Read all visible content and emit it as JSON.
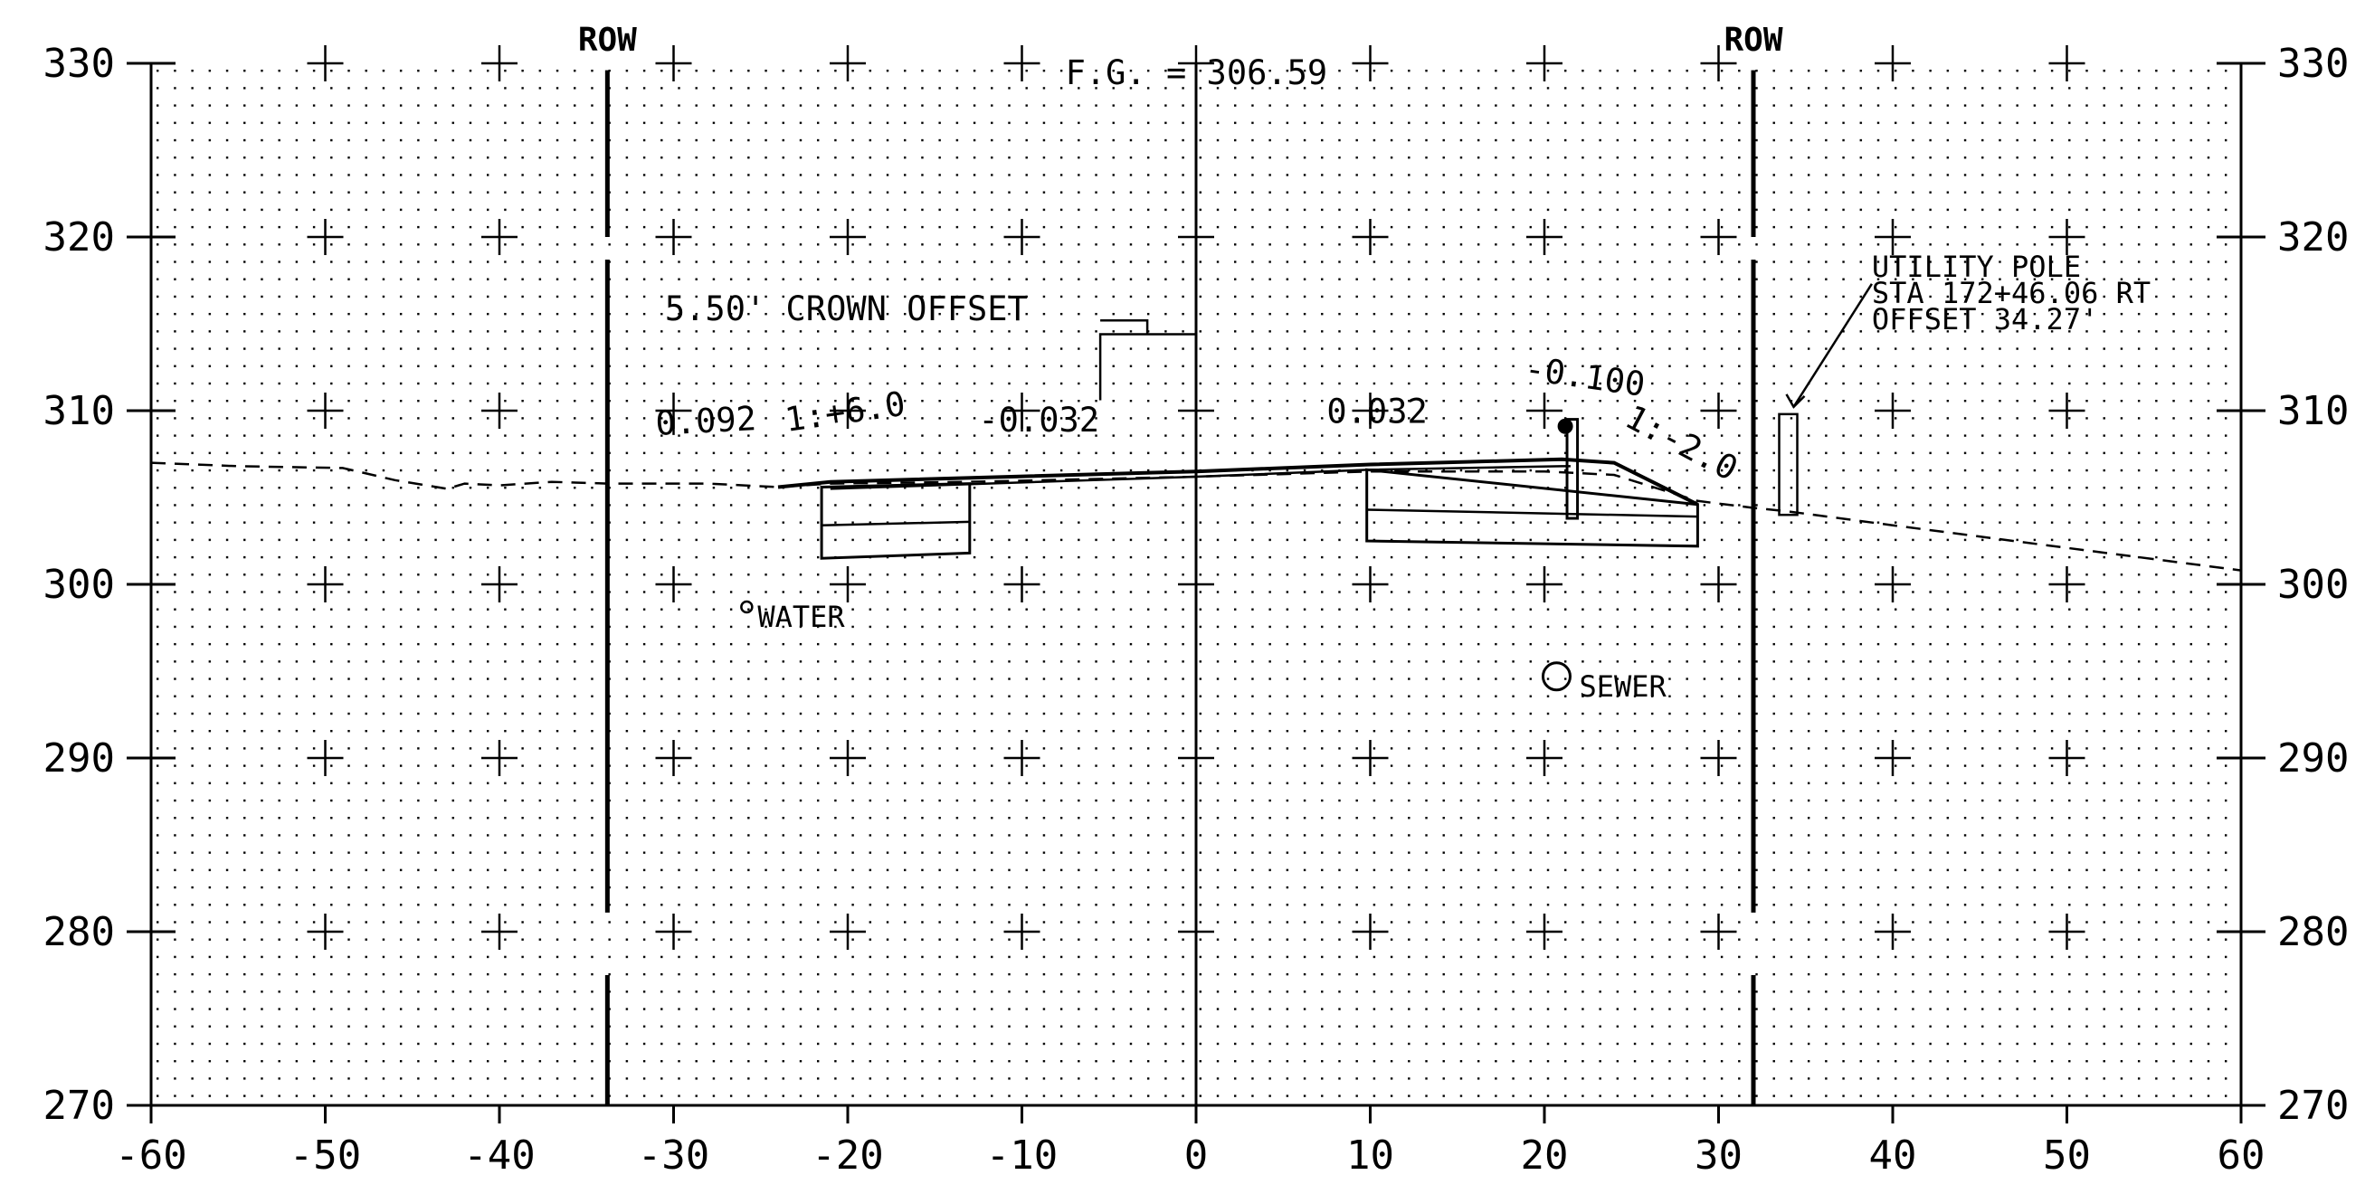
{
  "x_axis": {
    "min": -60,
    "max": 60,
    "step": 10,
    "tick_labels": [
      "-60",
      "-50",
      "-40",
      "-30",
      "-20",
      "-10",
      "0",
      "10",
      "20",
      "30",
      "40",
      "50",
      "60"
    ]
  },
  "y_axis": {
    "min": 270,
    "max": 330,
    "step": 10,
    "tick_labels": [
      "270",
      "280",
      "290",
      "300",
      "310",
      "320",
      "330"
    ]
  },
  "row_lines": [
    {
      "label": "ROW",
      "offset": -33.8
    },
    {
      "label": "ROW",
      "offset": 32.0
    }
  ],
  "centerline_offset": 0,
  "annotations": {
    "fg_elevation": "F.G. = 306.59",
    "crown_offset": "5.50' CROWN OFFSET",
    "left_slope": "0.092",
    "left_ratio": "1:+6.0",
    "left_cross_slope": "-0.032",
    "right_cross_slope": "0.032",
    "right_slope": "-0.100",
    "right_ratio": "1:-2.0",
    "utility_pole": [
      "UTILITY POLE",
      "STA 172+46.06 RT",
      "OFFSET 34.27'"
    ],
    "water": "WATER",
    "sewer": "SEWER"
  },
  "utilities": {
    "water": {
      "offset": -25.8,
      "elevation": 298.7
    },
    "sewer": {
      "offset": 20.7,
      "elevation": 294.7
    },
    "utility_pole": {
      "offset": 34.0,
      "elevation_bottom": 304.0,
      "elevation_top": 309.8
    }
  },
  "existing_ground": [
    [
      -60,
      307.0
    ],
    [
      -55,
      306.8
    ],
    [
      -49,
      306.7
    ],
    [
      -46,
      306.0
    ],
    [
      -43,
      305.5
    ],
    [
      -42,
      305.8
    ],
    [
      -40,
      305.7
    ],
    [
      -37,
      305.9
    ],
    [
      -33.8,
      305.8
    ],
    [
      -28,
      305.8
    ],
    [
      -24,
      305.6
    ],
    [
      -21,
      305.8
    ],
    [
      -13,
      305.9
    ],
    [
      0,
      306.2
    ],
    [
      10,
      306.5
    ],
    [
      20,
      306.5
    ],
    [
      24,
      306.3
    ],
    [
      28.8,
      304.8
    ],
    [
      32,
      304.4
    ],
    [
      34,
      304.2
    ],
    [
      40,
      303.4
    ],
    [
      50,
      302.1
    ],
    [
      60,
      300.8
    ]
  ],
  "proposed_grade": [
    [
      -24,
      305.6
    ],
    [
      -21,
      305.9
    ],
    [
      0,
      306.5
    ],
    [
      10,
      306.9
    ],
    [
      21,
      307.2
    ],
    [
      24,
      307.0
    ],
    [
      28.8,
      304.6
    ]
  ]
}
